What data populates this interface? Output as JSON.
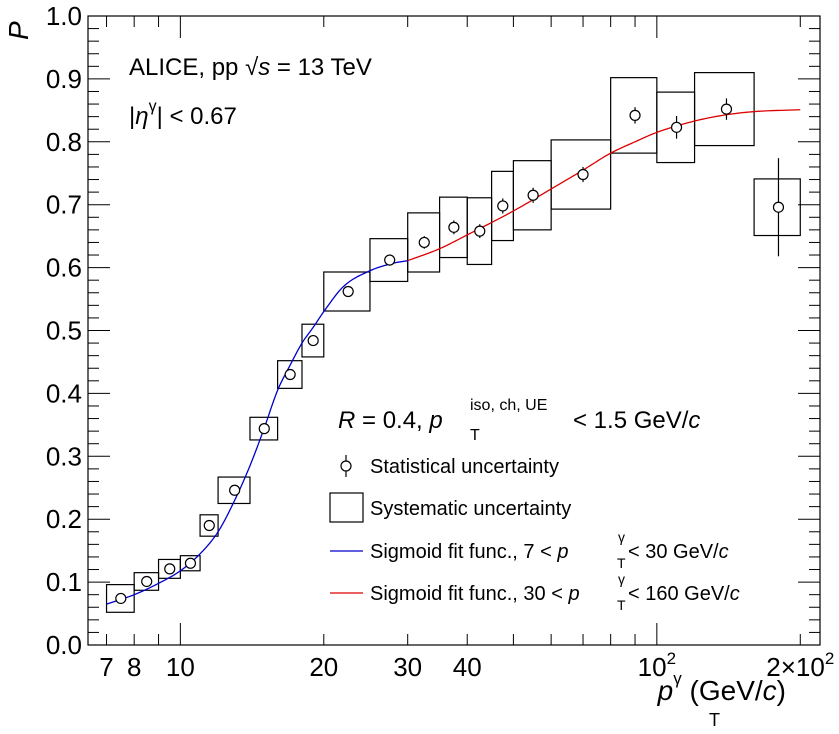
{
  "chart_data": {
    "type": "scatter",
    "ylabel": "P",
    "xlabel": {
      "main": "p",
      "sub": "T",
      "sup": "γ",
      "units_open": " (GeV/",
      "units_italic": "c",
      "units_close": ")"
    },
    "xscale": "log",
    "xlim": [
      6.4,
      220
    ],
    "ylim": [
      0.0,
      1.0
    ],
    "x_tick_labels": [
      {
        "value": 7,
        "label": "7"
      },
      {
        "value": 8,
        "label": "8"
      },
      {
        "value": 10,
        "label": "10"
      },
      {
        "value": 20,
        "label": "20"
      },
      {
        "value": 30,
        "label": "30"
      },
      {
        "value": 40,
        "label": "40"
      },
      {
        "value": 100,
        "label": "10",
        "sup": "2"
      },
      {
        "value": 200,
        "label": "2×10",
        "sup": "2"
      }
    ],
    "y_tick_labels": [
      "0.0",
      "0.1",
      "0.2",
      "0.3",
      "0.4",
      "0.5",
      "0.6",
      "0.7",
      "0.8",
      "0.9",
      "1.0"
    ],
    "grid": false,
    "annotations": {
      "experiment_prefix": "ALICE, pp  √",
      "experiment_s": "s",
      "experiment_suffix": " = 13 TeV",
      "eta_open": "|",
      "eta_symbol": "η",
      "eta_sup": "γ",
      "eta_close": "| < 0.67",
      "cone_R": "R",
      "cone_mid": " = 0.4, ",
      "cone_p": "p",
      "cone_sub": "T",
      "cone_sup": "iso, ch, UE",
      "cone_end": " < 1.5 GeV/",
      "cone_c": "c"
    },
    "legend": {
      "placement": "bottom-right",
      "entries": [
        {
          "kind": "stat",
          "label": "Statistical uncertainty"
        },
        {
          "kind": "syst",
          "label": "Systematic uncertainty"
        },
        {
          "kind": "fit_blue",
          "color": "#0000cc",
          "prefix": "Sigmoid fit func.,   7 < ",
          "p": "p",
          "sub": "T",
          "sup": "γ",
          "suffix": " < 30 GeV/",
          "c": "c"
        },
        {
          "kind": "fit_red",
          "color": "#dd0000",
          "prefix": "Sigmoid fit func., 30 < ",
          "p": "p",
          "sub": "T",
          "sup": "γ",
          "suffix": " < 160 GeV/",
          "c": "c"
        }
      ]
    },
    "points": [
      {
        "x": 7.5,
        "y": 0.074,
        "stat": 0.004,
        "xlo": 7.0,
        "xhi": 8.0,
        "syst": 0.022
      },
      {
        "x": 8.5,
        "y": 0.101,
        "stat": 0.004,
        "xlo": 8.0,
        "xhi": 9.0,
        "syst": 0.014
      },
      {
        "x": 9.5,
        "y": 0.121,
        "stat": 0.004,
        "xlo": 9.0,
        "xhi": 10.0,
        "syst": 0.015
      },
      {
        "x": 10.5,
        "y": 0.13,
        "stat": 0.004,
        "xlo": 10.0,
        "xhi": 11.0,
        "syst": 0.012
      },
      {
        "x": 11.5,
        "y": 0.19,
        "stat": 0.005,
        "xlo": 11.0,
        "xhi": 12.0,
        "syst": 0.017
      },
      {
        "x": 13.0,
        "y": 0.246,
        "stat": 0.005,
        "xlo": 12.0,
        "xhi": 14.0,
        "syst": 0.021
      },
      {
        "x": 15.0,
        "y": 0.344,
        "stat": 0.006,
        "xlo": 14.0,
        "xhi": 16.0,
        "syst": 0.018
      },
      {
        "x": 17.0,
        "y": 0.43,
        "stat": 0.007,
        "xlo": 16.0,
        "xhi": 18.0,
        "syst": 0.022
      },
      {
        "x": 19.0,
        "y": 0.484,
        "stat": 0.008,
        "xlo": 18.0,
        "xhi": 20.0,
        "syst": 0.026
      },
      {
        "x": 22.5,
        "y": 0.562,
        "stat": 0.008,
        "xlo": 20.0,
        "xhi": 25.0,
        "syst": 0.031
      },
      {
        "x": 27.5,
        "y": 0.612,
        "stat": 0.009,
        "xlo": 25.0,
        "xhi": 30.0,
        "syst": 0.034
      },
      {
        "x": 32.5,
        "y": 0.64,
        "stat": 0.01,
        "xlo": 30.0,
        "xhi": 35.0,
        "syst": 0.047
      },
      {
        "x": 37.5,
        "y": 0.664,
        "stat": 0.011,
        "xlo": 35.0,
        "xhi": 40.0,
        "syst": 0.048
      },
      {
        "x": 42.5,
        "y": 0.658,
        "stat": 0.011,
        "xlo": 40.0,
        "xhi": 45.0,
        "syst": 0.053
      },
      {
        "x": 47.5,
        "y": 0.698,
        "stat": 0.012,
        "xlo": 45.0,
        "xhi": 50.0,
        "syst": 0.055
      },
      {
        "x": 55.0,
        "y": 0.715,
        "stat": 0.012,
        "xlo": 50.0,
        "xhi": 60.0,
        "syst": 0.055
      },
      {
        "x": 70.0,
        "y": 0.748,
        "stat": 0.012,
        "xlo": 60.0,
        "xhi": 80.0,
        "syst": 0.055
      },
      {
        "x": 90.0,
        "y": 0.842,
        "stat": 0.013,
        "xlo": 80.0,
        "xhi": 100.0,
        "syst": 0.06
      },
      {
        "x": 110.0,
        "y": 0.823,
        "stat": 0.018,
        "xlo": 100.0,
        "xhi": 120.0,
        "syst": 0.056
      },
      {
        "x": 140.0,
        "y": 0.852,
        "stat": 0.017,
        "xlo": 120.0,
        "xhi": 160.0,
        "syst": 0.058
      },
      {
        "x": 180.0,
        "y": 0.696,
        "stat": 0.078,
        "xlo": 160.0,
        "xhi": 200.0,
        "syst": 0.045
      }
    ],
    "fits": [
      {
        "name": "fit-blue",
        "color": "#0000cc",
        "xmin": 7,
        "xmax": 30,
        "shape": [
          [
            7,
            0.065
          ],
          [
            8,
            0.08
          ],
          [
            9,
            0.098
          ],
          [
            10,
            0.118
          ],
          [
            11,
            0.145
          ],
          [
            12,
            0.18
          ],
          [
            13,
            0.23
          ],
          [
            14,
            0.285
          ],
          [
            15,
            0.345
          ],
          [
            16,
            0.405
          ],
          [
            17,
            0.445
          ],
          [
            18,
            0.48
          ],
          [
            19,
            0.505
          ],
          [
            20,
            0.53
          ],
          [
            22,
            0.57
          ],
          [
            25,
            0.595
          ],
          [
            28,
            0.607
          ],
          [
            30,
            0.611
          ]
        ]
      },
      {
        "name": "fit-red",
        "color": "#dd0000",
        "xmin": 30,
        "xmax": 200,
        "shape": [
          [
            30,
            0.611
          ],
          [
            35,
            0.63
          ],
          [
            40,
            0.652
          ],
          [
            50,
            0.69
          ],
          [
            60,
            0.725
          ],
          [
            70,
            0.755
          ],
          [
            80,
            0.782
          ],
          [
            90,
            0.8
          ],
          [
            100,
            0.815
          ],
          [
            120,
            0.833
          ],
          [
            140,
            0.843
          ],
          [
            160,
            0.848
          ],
          [
            200,
            0.851
          ]
        ]
      }
    ]
  }
}
